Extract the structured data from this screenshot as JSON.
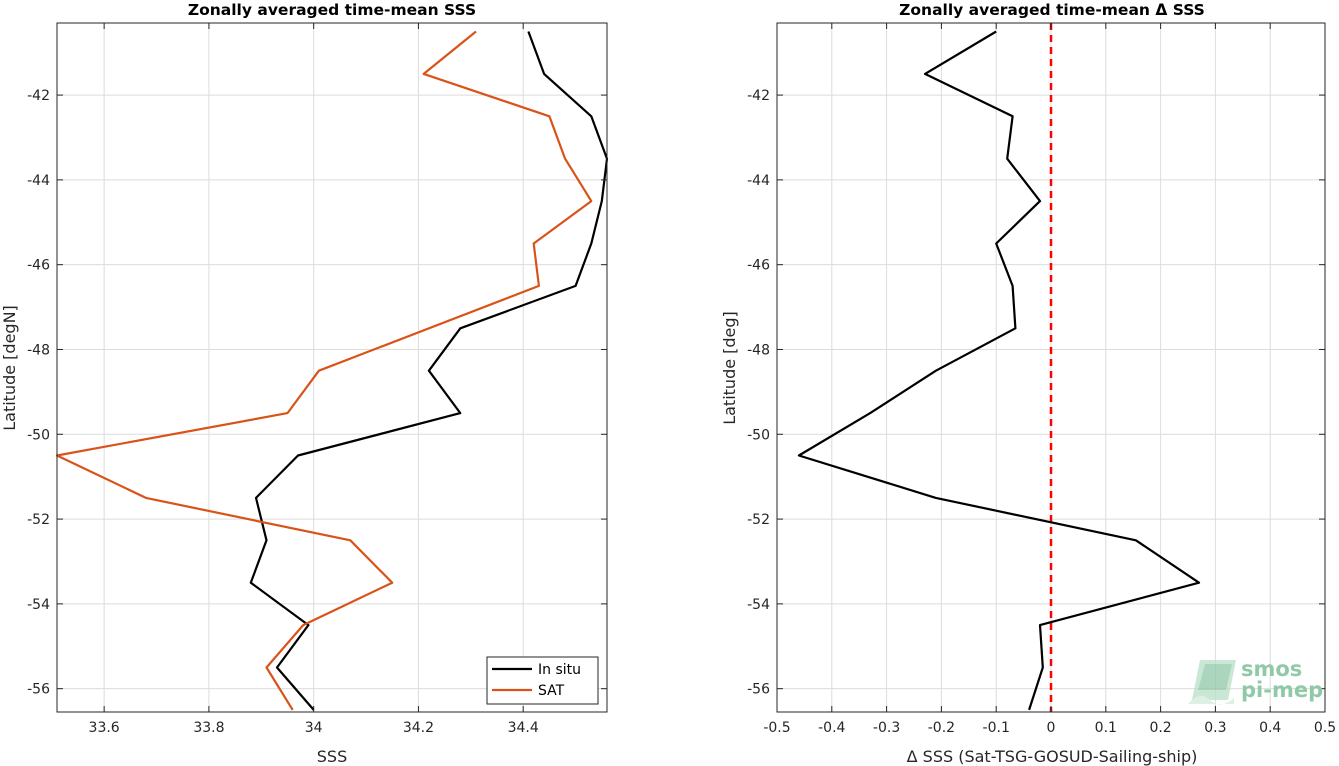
{
  "chart_data": [
    {
      "type": "line",
      "title": "Zonally averaged time-mean SSS",
      "xlabel": "SSS",
      "ylabel": "Latitude [degN]",
      "xlim": [
        33.51,
        34.56
      ],
      "ylim": [
        -56.55,
        -40.3
      ],
      "x_ticks": [
        "33.6",
        "33.8",
        "34",
        "34.2",
        "34.4"
      ],
      "x_tick_values": [
        33.6,
        33.8,
        34.0,
        34.2,
        34.4
      ],
      "y_ticks": [
        "-42",
        "-44",
        "-46",
        "-48",
        "-50",
        "-52",
        "-54",
        "-56"
      ],
      "y_tick_values": [
        -42,
        -44,
        -46,
        -48,
        -50,
        -52,
        -54,
        -56
      ],
      "grid": true,
      "legend": "bottom-right",
      "series": [
        {
          "name": "In situ",
          "color": "#000000",
          "points": [
            [
              34.41,
              -40.5
            ],
            [
              34.44,
              -41.5
            ],
            [
              34.53,
              -42.5
            ],
            [
              34.56,
              -43.5
            ],
            [
              34.55,
              -44.5
            ],
            [
              34.53,
              -45.5
            ],
            [
              34.5,
              -46.5
            ],
            [
              34.28,
              -47.5
            ],
            [
              34.22,
              -48.5
            ],
            [
              34.28,
              -49.5
            ],
            [
              33.97,
              -50.5
            ],
            [
              33.89,
              -51.5
            ],
            [
              33.91,
              -52.5
            ],
            [
              33.88,
              -53.5
            ],
            [
              33.99,
              -54.5
            ],
            [
              33.93,
              -55.5
            ],
            [
              34.0,
              -56.5
            ]
          ]
        },
        {
          "name": "SAT",
          "color": "#d95319",
          "points": [
            [
              34.31,
              -40.5
            ],
            [
              34.21,
              -41.5
            ],
            [
              34.45,
              -42.5
            ],
            [
              34.48,
              -43.5
            ],
            [
              34.53,
              -44.5
            ],
            [
              34.42,
              -45.5
            ],
            [
              34.43,
              -46.5
            ],
            [
              34.01,
              -48.5
            ],
            [
              33.95,
              -49.5
            ],
            [
              33.51,
              -50.5
            ],
            [
              33.68,
              -51.5
            ],
            [
              34.07,
              -52.5
            ],
            [
              34.15,
              -53.5
            ],
            [
              33.98,
              -54.5
            ],
            [
              33.91,
              -55.5
            ],
            [
              33.96,
              -56.5
            ]
          ]
        }
      ]
    },
    {
      "type": "line",
      "title": "Zonally averaged time-mean Δ SSS",
      "xlabel": "Δ SSS (Sat-TSG-GOSUD-Sailing-ship)",
      "ylabel": "Latitude [deg]",
      "xlim": [
        -0.5,
        0.5
      ],
      "ylim": [
        -56.55,
        -40.3
      ],
      "x_ticks": [
        "-0.5",
        "-0.4",
        "-0.3",
        "-0.2",
        "-0.1",
        "0",
        "0.1",
        "0.2",
        "0.3",
        "0.4",
        "0.5"
      ],
      "x_tick_values": [
        -0.5,
        -0.4,
        -0.3,
        -0.2,
        -0.1,
        0,
        0.1,
        0.2,
        0.3,
        0.4,
        0.5
      ],
      "y_ticks": [
        "-42",
        "-44",
        "-46",
        "-48",
        "-50",
        "-52",
        "-54",
        "-56"
      ],
      "y_tick_values": [
        -42,
        -44,
        -46,
        -48,
        -50,
        -52,
        -54,
        -56
      ],
      "grid": true,
      "reference_line": {
        "x": 0,
        "color": "#ff0000",
        "style": "dashed"
      },
      "series": [
        {
          "color": "#000000",
          "points": [
            [
              -0.1,
              -40.5
            ],
            [
              -0.23,
              -41.5
            ],
            [
              -0.07,
              -42.5
            ],
            [
              -0.08,
              -43.5
            ],
            [
              -0.02,
              -44.5
            ],
            [
              -0.1,
              -45.5
            ],
            [
              -0.07,
              -46.5
            ],
            [
              -0.065,
              -47.5
            ],
            [
              -0.21,
              -48.5
            ],
            [
              -0.33,
              -49.5
            ],
            [
              -0.46,
              -50.5
            ],
            [
              -0.21,
              -51.5
            ],
            [
              0.155,
              -52.5
            ],
            [
              0.27,
              -53.5
            ],
            [
              -0.02,
              -54.5
            ],
            [
              -0.015,
              -55.5
            ],
            [
              -0.04,
              -56.5
            ]
          ]
        }
      ]
    }
  ],
  "logo": {
    "line1": "smos",
    "line2": "pi-mep",
    "color": "#8fc9a7"
  }
}
